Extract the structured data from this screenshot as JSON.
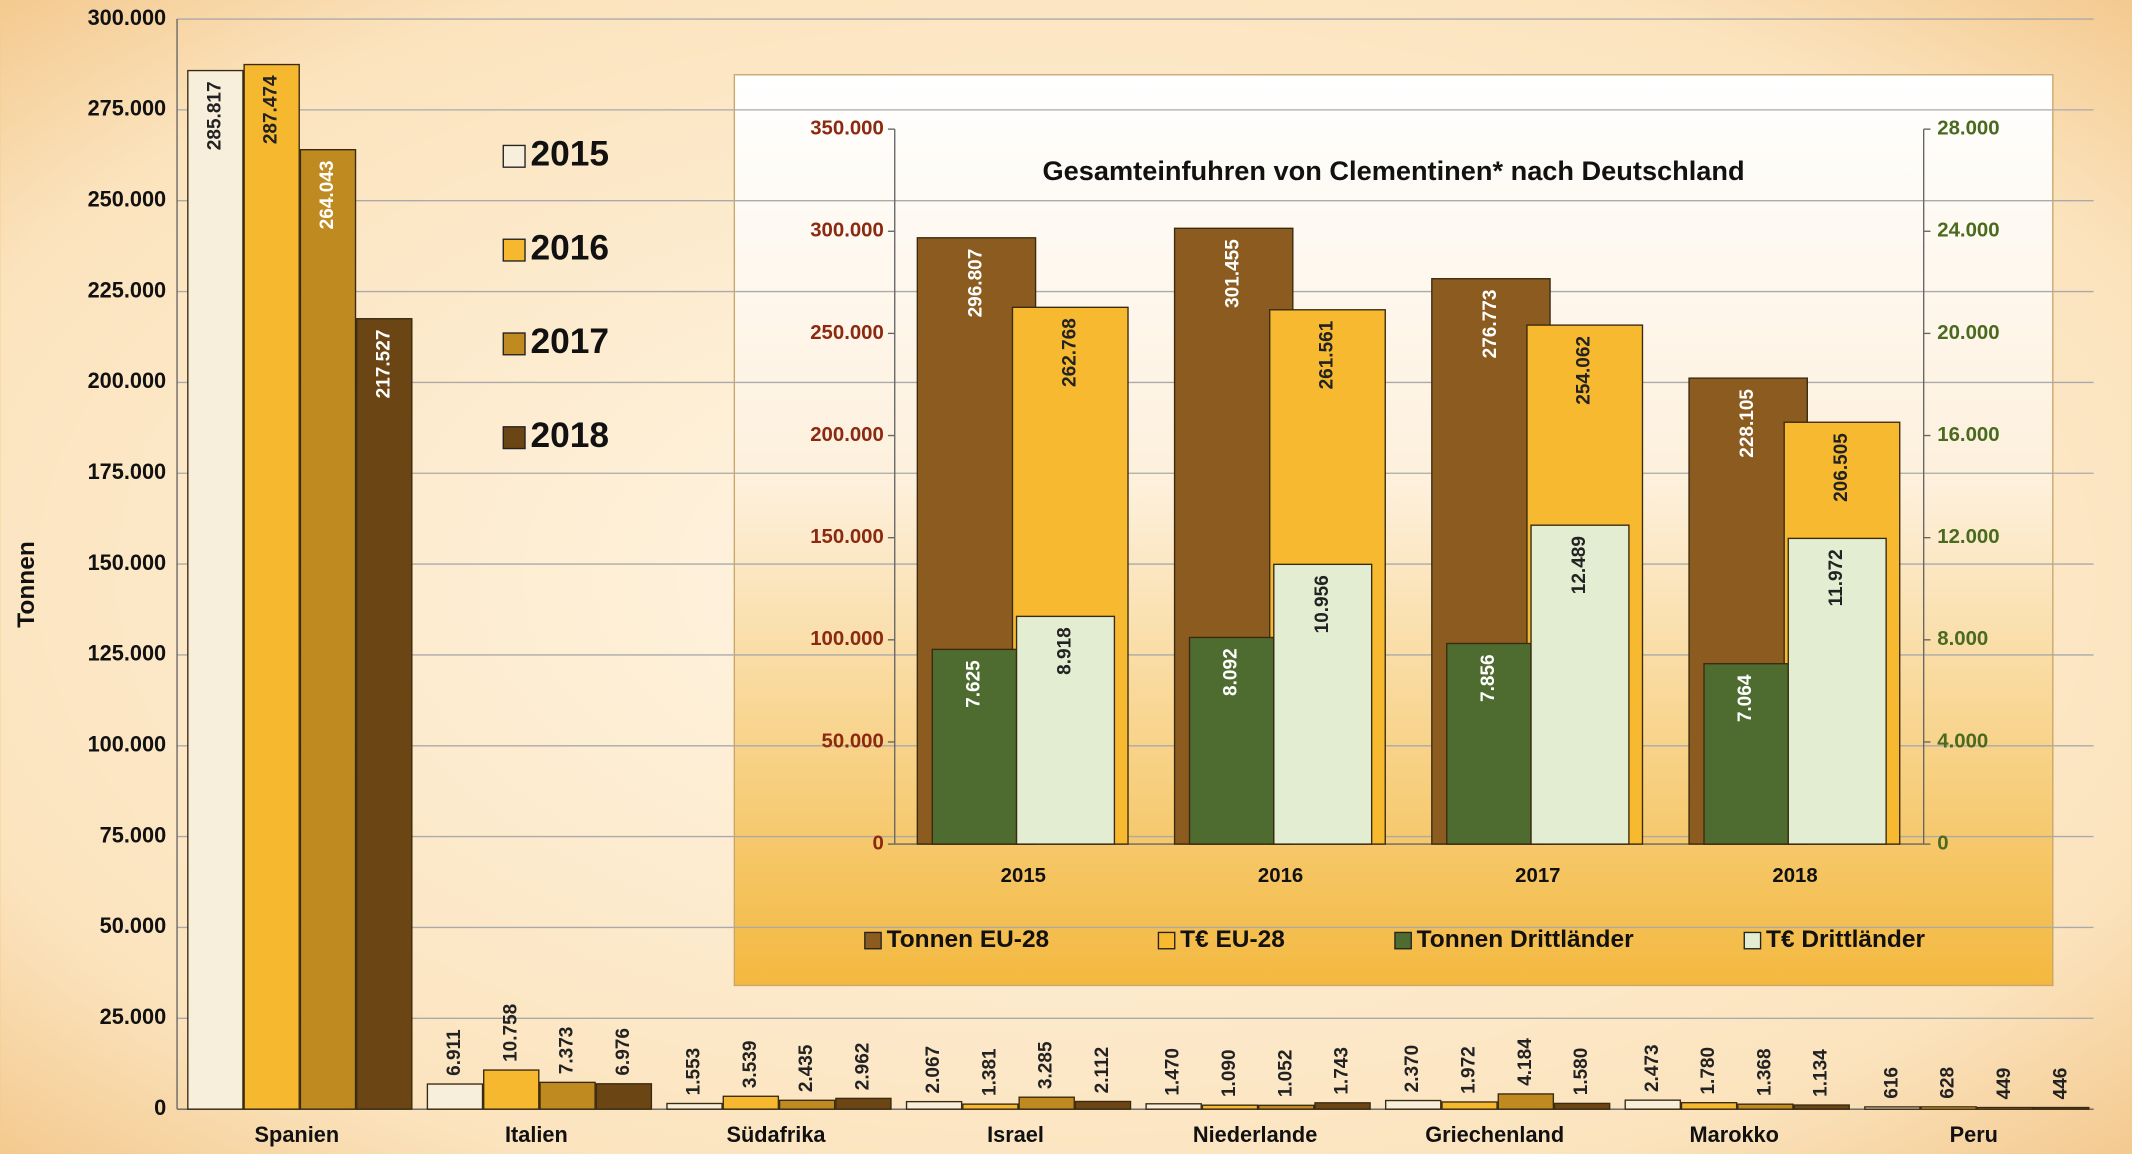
{
  "chart_data": [
    {
      "type": "bar",
      "y_label": "Tonnen",
      "categories": [
        "Spanien",
        "Italien",
        "Südafrika",
        "Israel",
        "Niederlande",
        "Griechenland",
        "Marokko",
        "Peru"
      ],
      "series": [
        {
          "name": "2015",
          "color": "#f7efdc",
          "values": [
            285817,
            6911,
            1553,
            2067,
            1470,
            2370,
            2473,
            616
          ],
          "value_labels": [
            "285.817",
            "6.911",
            "1.553",
            "2.067",
            "1.470",
            "2.370",
            "2.473",
            "616"
          ]
        },
        {
          "name": "2016",
          "color": "#f5b82e",
          "values": [
            287474,
            10758,
            3539,
            1381,
            1090,
            1972,
            1780,
            628
          ],
          "value_labels": [
            "287.474",
            "10.758",
            "3.539",
            "1.381",
            "1.090",
            "1.972",
            "1.780",
            "628"
          ]
        },
        {
          "name": "2017",
          "color": "#bf8a20",
          "values": [
            264043,
            7373,
            2435,
            3285,
            1052,
            4184,
            1368,
            449
          ],
          "value_labels": [
            "264.043",
            "7.373",
            "2.435",
            "3.285",
            "1.052",
            "4.184",
            "1.368",
            "449"
          ]
        },
        {
          "name": "2018",
          "color": "#6b4514",
          "values": [
            217527,
            6976,
            2962,
            2112,
            1743,
            1580,
            1134,
            446
          ],
          "value_labels": [
            "217.527",
            "6.976",
            "2.962",
            "2.112",
            "1.743",
            "1.580",
            "1.134",
            "446"
          ]
        }
      ],
      "ylim": [
        0,
        300000
      ],
      "yticks": [
        0,
        {
          "value": 25000,
          "label": "25.000"
        },
        {
          "value": 50000,
          "label": "50.000"
        },
        {
          "value": 75000,
          "label": "75.000"
        },
        {
          "value": 100000,
          "label": "100.000"
        },
        {
          "value": 125000,
          "label": "125.000"
        },
        {
          "value": 150000,
          "label": "150.000"
        },
        {
          "value": 175000,
          "label": "175.000"
        },
        {
          "value": 200000,
          "label": "200.000"
        },
        {
          "value": 225000,
          "label": "225.000"
        },
        {
          "value": 250000,
          "label": "250.000"
        },
        {
          "value": 275000,
          "label": "275.000"
        },
        {
          "value": 300000,
          "label": "300.000"
        }
      ],
      "grid": true,
      "legend": "upper left"
    },
    {
      "type": "bar",
      "title": "Gesamteinfuhren von Clementinen* nach Deutschland",
      "categories": [
        "2015",
        "2016",
        "2017",
        "2018"
      ],
      "series": [
        {
          "name": "Tonnen EU-28",
          "color": "#8c5b1f",
          "axis": "y",
          "values": [
            296807,
            301455,
            276773,
            228105
          ],
          "value_labels": [
            "296.807",
            "301.455",
            "276.773",
            "228.105"
          ]
        },
        {
          "name": "T€ EU-28",
          "color": "#f6b92f",
          "axis": "y",
          "values": [
            262768,
            261561,
            254062,
            206505
          ],
          "value_labels": [
            "262.768",
            "261.561",
            "254.062",
            "206.505"
          ]
        },
        {
          "name": "Tonnen Drittländer",
          "color": "#4f6c30",
          "axis": "y2",
          "values": [
            7625,
            8092,
            7856,
            7064
          ],
          "value_labels": [
            "7.625",
            "8.092",
            "7.856",
            "7.064"
          ]
        },
        {
          "name": "T€ Drittländer",
          "color": "#e2edd2",
          "axis": "y2",
          "values": [
            8918,
            10956,
            12489,
            11972
          ],
          "value_labels": [
            "8.918",
            "10.956",
            "12.489",
            "11.972"
          ]
        }
      ],
      "ylim": [
        0,
        350000
      ],
      "yticks": [
        0,
        {
          "value": 50000,
          "label": "50.000"
        },
        {
          "value": 100000,
          "label": "100.000"
        },
        {
          "value": 150000,
          "label": "150.000"
        },
        {
          "value": 200000,
          "label": "200.000"
        },
        {
          "value": 250000,
          "label": "250.000"
        },
        {
          "value": 300000,
          "label": "300.000"
        },
        {
          "value": 350000,
          "label": "350.000"
        }
      ],
      "y2lim": [
        0,
        28000
      ],
      "y2ticks": [
        0,
        {
          "value": 4000,
          "label": "4.000"
        },
        {
          "value": 8000,
          "label": "8.000"
        },
        {
          "value": 12000,
          "label": "12.000"
        },
        {
          "value": 16000,
          "label": "16.000"
        },
        {
          "value": 20000,
          "label": "20.000"
        },
        {
          "value": 24000,
          "label": "24.000"
        },
        {
          "value": 28000,
          "label": "28.000"
        }
      ],
      "grid": false,
      "legend": "bottom"
    }
  ]
}
